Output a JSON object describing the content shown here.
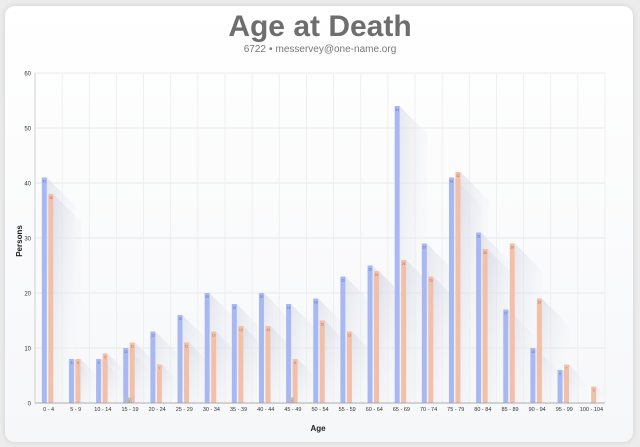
{
  "header": {
    "title": "Age at Death",
    "count": "6722",
    "separator": "•",
    "email": "messervey@one-name.org"
  },
  "chart_data": {
    "type": "bar",
    "title": "Age at Death",
    "xlabel": "Age",
    "ylabel": "Persons",
    "ylim": [
      0,
      60
    ],
    "yticks": [
      0,
      10,
      20,
      30,
      40,
      50,
      60
    ],
    "grid": true,
    "categories": [
      "0 - 4",
      "5 - 9",
      "10 - 14",
      "15 - 19",
      "20 - 24",
      "25 - 29",
      "30 - 34",
      "35 - 39",
      "40 - 44",
      "45 - 49",
      "50 - 54",
      "55 - 59",
      "60 - 64",
      "65 - 69",
      "70 - 74",
      "75 - 79",
      "80 - 84",
      "85 - 89",
      "90 - 94",
      "95 - 99",
      "100 - 104"
    ],
    "series": [
      {
        "color": "#a7b8f2",
        "label_color": "#5a6fb8",
        "values": [
          41,
          8,
          8,
          10,
          13,
          16,
          20,
          18,
          20,
          18,
          19,
          23,
          25,
          54,
          29,
          41,
          31,
          17,
          10,
          6,
          0
        ]
      },
      {
        "color": "#f2bfa8",
        "label_color": "#b86a4c",
        "values": [
          38,
          8,
          9,
          11,
          7,
          11,
          13,
          14,
          14,
          8,
          15,
          13,
          24,
          26,
          23,
          42,
          28,
          29,
          19,
          7,
          3
        ]
      },
      {
        "color": "#bdbdbd",
        "label_color": "#888888",
        "values": [
          0,
          0,
          0,
          1,
          0,
          0,
          0,
          0,
          0,
          1,
          0,
          0,
          0,
          0,
          0,
          0,
          0,
          0,
          0,
          0,
          0
        ]
      }
    ]
  }
}
